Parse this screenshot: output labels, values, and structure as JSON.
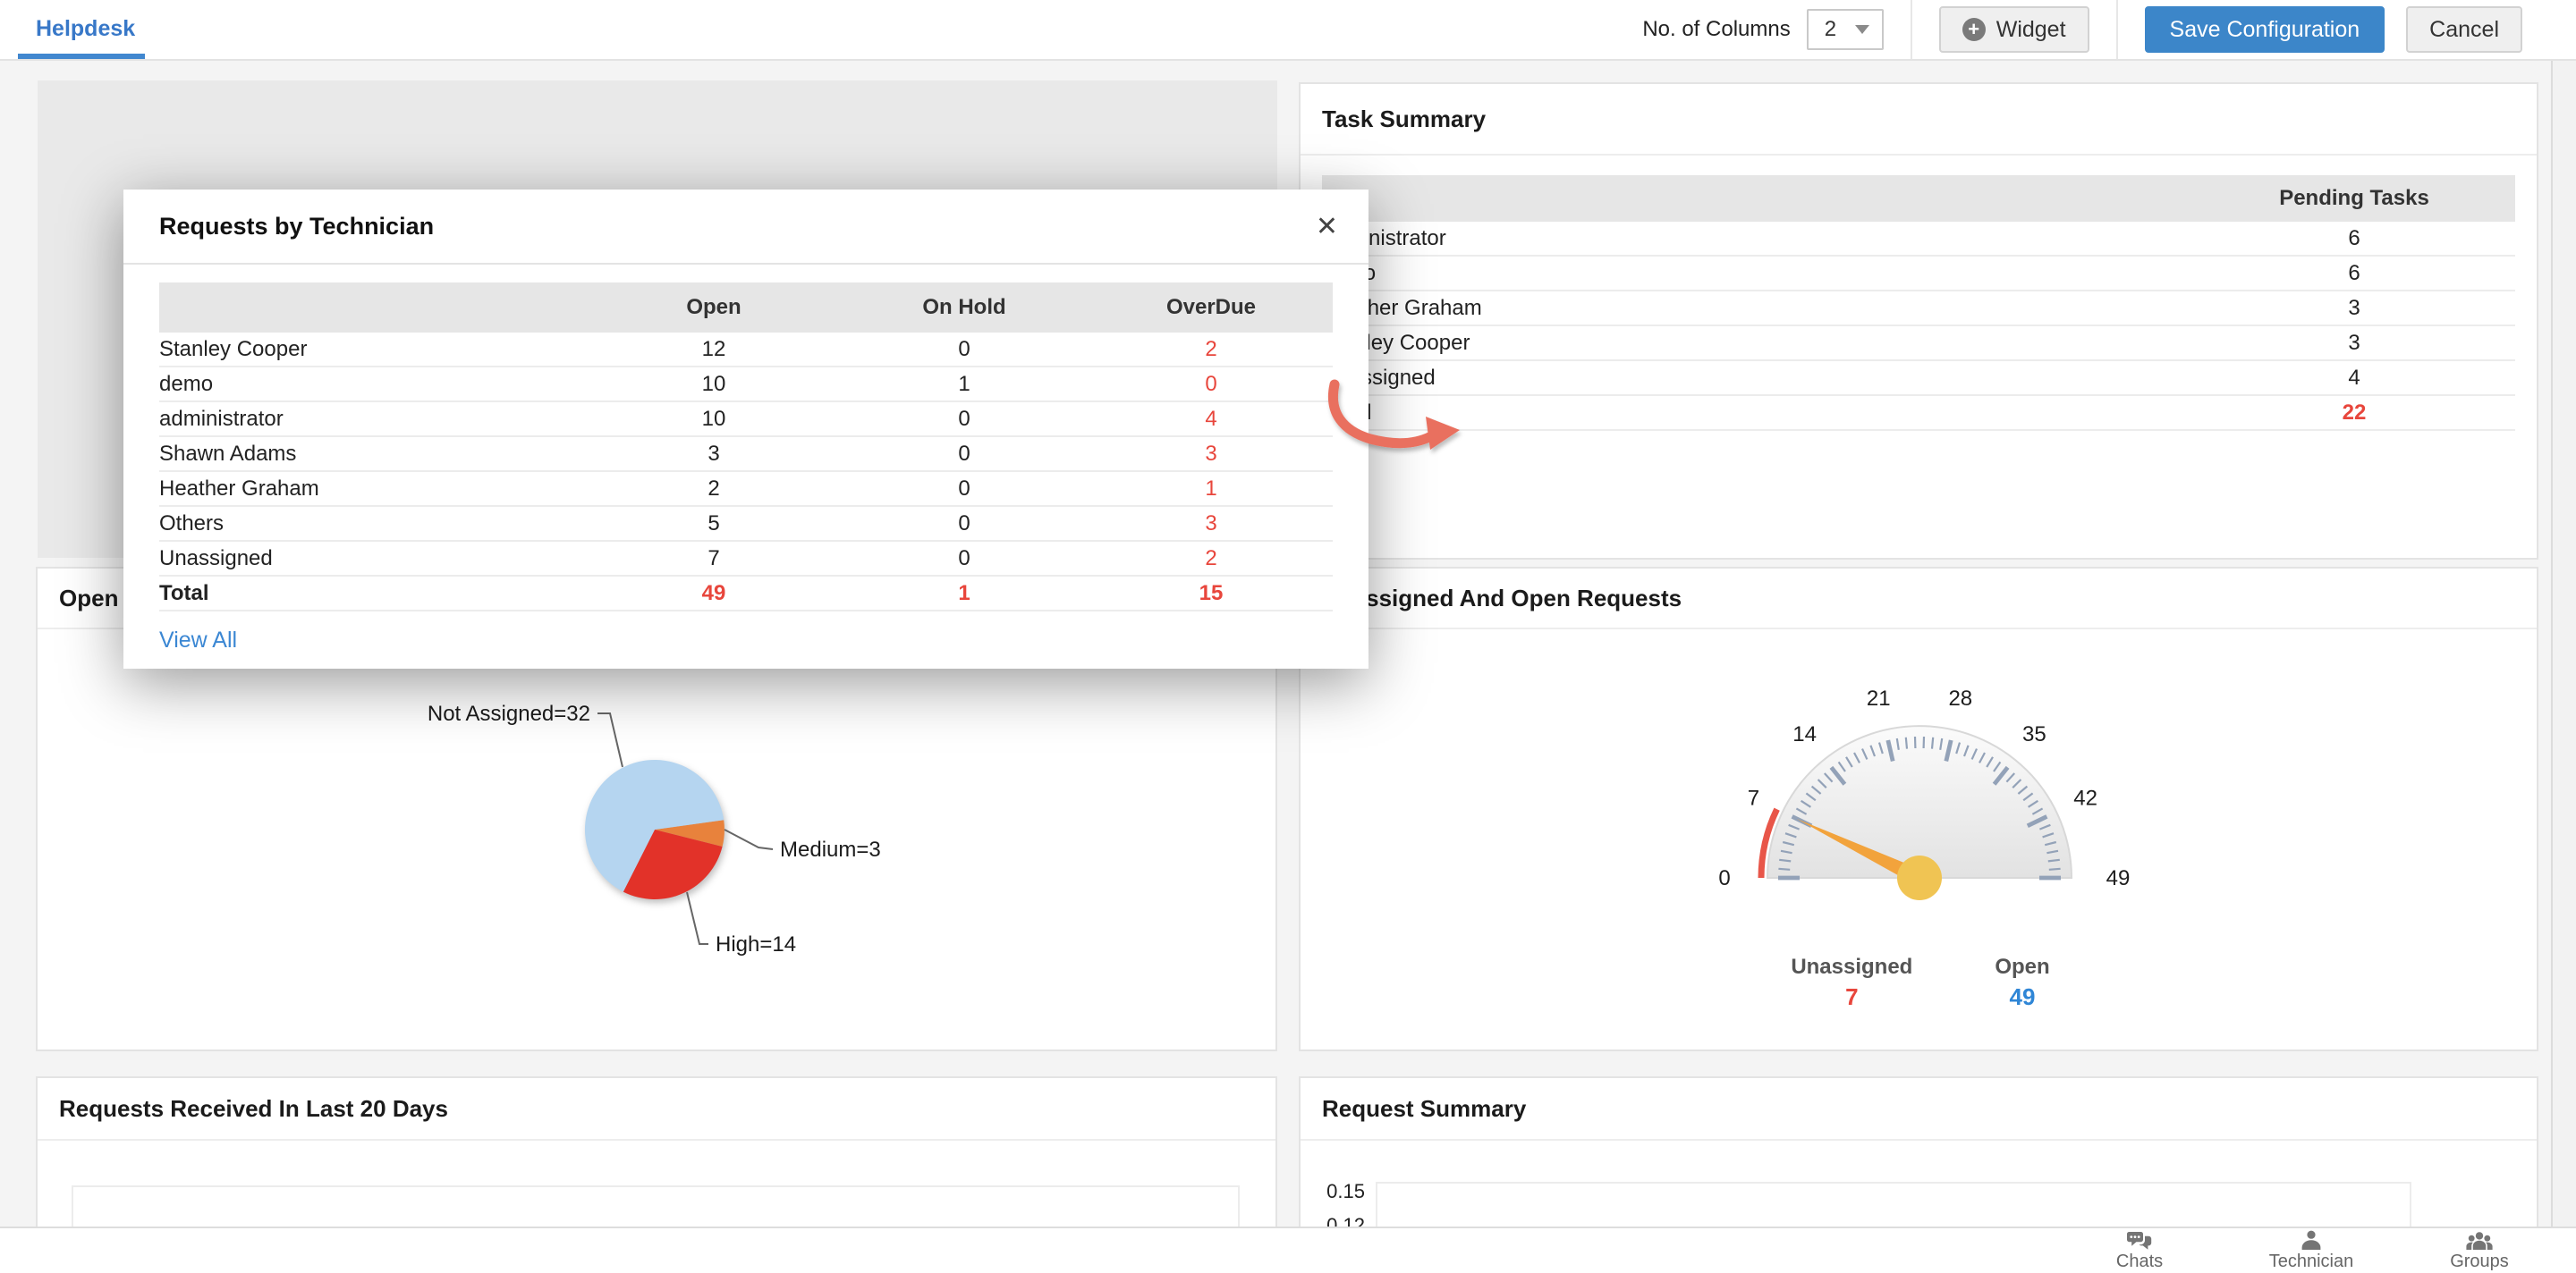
{
  "topbar": {
    "tab": "Helpdesk",
    "columns_label": "No. of Columns",
    "columns_value": "2",
    "widget_button": "Widget",
    "save_button": "Save Configuration",
    "cancel_button": "Cancel"
  },
  "modal": {
    "title": "Requests by Technician",
    "close_glyph": "✕",
    "columns": [
      "Open",
      "On Hold",
      "OverDue"
    ],
    "rows": [
      {
        "name": "Stanley Cooper",
        "open": "12",
        "on_hold": "0",
        "overdue": "2"
      },
      {
        "name": "demo",
        "open": "10",
        "on_hold": "1",
        "overdue": "0"
      },
      {
        "name": "administrator",
        "open": "10",
        "on_hold": "0",
        "overdue": "4"
      },
      {
        "name": "Shawn Adams",
        "open": "3",
        "on_hold": "0",
        "overdue": "3"
      },
      {
        "name": "Heather Graham",
        "open": "2",
        "on_hold": "0",
        "overdue": "1"
      },
      {
        "name": "Others",
        "open": "5",
        "on_hold": "0",
        "overdue": "3"
      },
      {
        "name": "Unassigned",
        "open": "7",
        "on_hold": "0",
        "overdue": "2"
      }
    ],
    "total": {
      "name": "Total",
      "open": "49",
      "on_hold": "1",
      "overdue": "15"
    },
    "view_all": "View All"
  },
  "task_summary": {
    "title": "Task Summary",
    "value_column": "Pending Tasks",
    "rows": [
      {
        "name": "administrator",
        "value": "6"
      },
      {
        "name": "demo",
        "value": "6"
      },
      {
        "name": "Heather Graham",
        "value": "3"
      },
      {
        "name": "Stanley Cooper",
        "value": "3"
      },
      {
        "name": "Unassigned",
        "value": "4"
      }
    ],
    "total": {
      "name": "Total",
      "value": "22"
    }
  },
  "priority_panel": {
    "title": "Open Requests By Priority"
  },
  "gauge_panel": {
    "title": "Unassigned And Open Requests",
    "legend": [
      {
        "label": "Unassigned",
        "value": "7",
        "color": "#e8463c"
      },
      {
        "label": "Open",
        "value": "49",
        "color": "#2f86d6"
      }
    ]
  },
  "last20_panel": {
    "title": "Requests Received In Last 20 Days"
  },
  "reqsum_panel": {
    "title": "Request Summary",
    "y_ticks": [
      "0.15",
      "0.12"
    ]
  },
  "dock": {
    "chats": "Chats",
    "technician": "Technician",
    "groups": "Groups"
  },
  "colors": {
    "accent_blue": "#3c86c9",
    "link_blue": "#3b87d3",
    "alert_red": "#e8463c",
    "pie_blue": "#b5d5f0",
    "pie_red": "#e23229",
    "pie_orange": "#e8823c",
    "gauge_tick": "#93a2b8",
    "gauge_arc_red": "#e85649",
    "needle_orange": "#f2a33c",
    "hub_yellow": "#f0c453",
    "annotation_arrow": "#e9705f"
  },
  "chart_data": [
    {
      "type": "pie",
      "title": "Open Requests By Priority",
      "slices": [
        {
          "label": "Not Assigned",
          "value": 32,
          "display": "Not Assigned=32",
          "color": "#b5d5f0"
        },
        {
          "label": "Medium",
          "value": 3,
          "display": "Medium=3",
          "color": "#e8823c"
        },
        {
          "label": "High",
          "value": 14,
          "display": "High=14",
          "color": "#e23229"
        }
      ],
      "total": 49,
      "legend_position": "callout-labels"
    },
    {
      "type": "gauge",
      "title": "Unassigned And Open Requests",
      "min": 0,
      "max": 49,
      "major_ticks": [
        0,
        7,
        14,
        21,
        28,
        35,
        42,
        49
      ],
      "value": 7,
      "value_label": "Unassigned",
      "secondary_value": 49,
      "secondary_label": "Open",
      "red_band": [
        0,
        7
      ]
    },
    {
      "type": "line",
      "title": "Request Summary",
      "y_ticks": [
        0.15,
        0.12
      ],
      "note_visible_region": "chart clipped at bottom of viewport, no data points visible"
    },
    {
      "type": "line",
      "title": "Requests Received In Last 20 Days",
      "note_visible_region": "empty plot area visible, chart clipped at bottom of viewport"
    }
  ]
}
